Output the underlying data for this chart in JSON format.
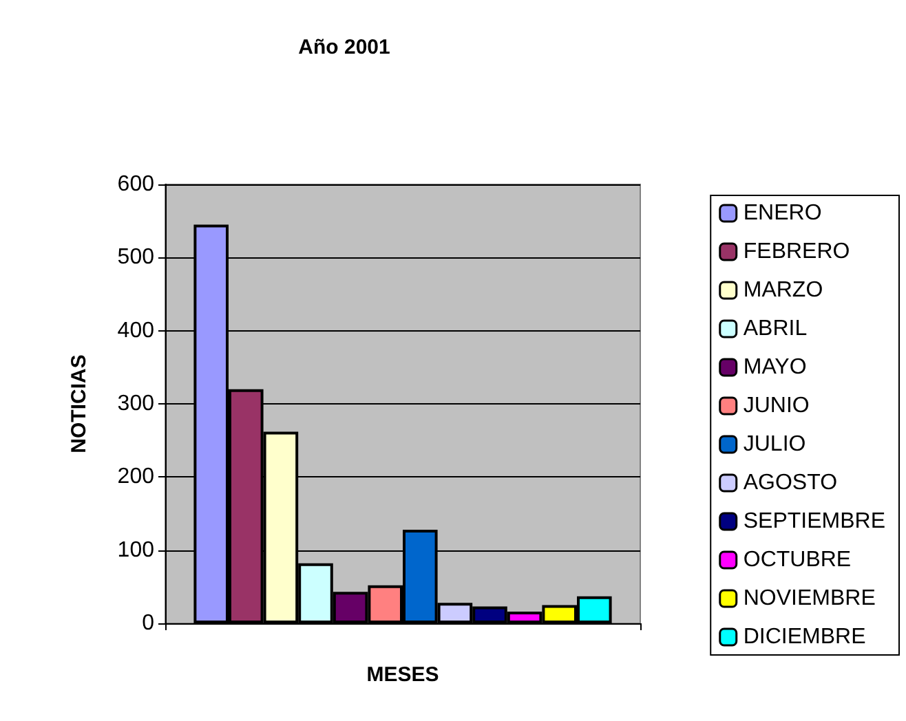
{
  "chart_data": {
    "type": "bar",
    "title": "Año 2001",
    "xlabel": "MESES",
    "ylabel": "NOTICIAS",
    "categories": [
      null
    ],
    "series": [
      {
        "name": "ENERO",
        "color": "#9999ff",
        "values": [
          545
        ]
      },
      {
        "name": "FEBRERO",
        "color": "#993366",
        "values": [
          320
        ]
      },
      {
        "name": "MARZO",
        "color": "#ffffcc",
        "values": [
          262
        ]
      },
      {
        "name": "ABRIL",
        "color": "#ccffff",
        "values": [
          82
        ]
      },
      {
        "name": "MAYO",
        "color": "#660066",
        "values": [
          43
        ]
      },
      {
        "name": "JUNIO",
        "color": "#ff8080",
        "values": [
          52
        ]
      },
      {
        "name": "JULIO",
        "color": "#0066cc",
        "values": [
          128
        ]
      },
      {
        "name": "AGOSTO",
        "color": "#ccccff",
        "values": [
          28
        ]
      },
      {
        "name": "SEPTIEMBRE",
        "color": "#000080",
        "values": [
          23
        ]
      },
      {
        "name": "OCTUBRE",
        "color": "#ff00ff",
        "values": [
          16
        ]
      },
      {
        "name": "NOVIEMBRE",
        "color": "#ffff00",
        "values": [
          25
        ]
      },
      {
        "name": "DICIEMBRE",
        "color": "#00ffff",
        "values": [
          37
        ]
      }
    ],
    "ylim": [
      0,
      600
    ],
    "yticks": [
      0,
      100,
      200,
      300,
      400,
      500,
      600
    ],
    "grid": "y",
    "legend": "right"
  }
}
